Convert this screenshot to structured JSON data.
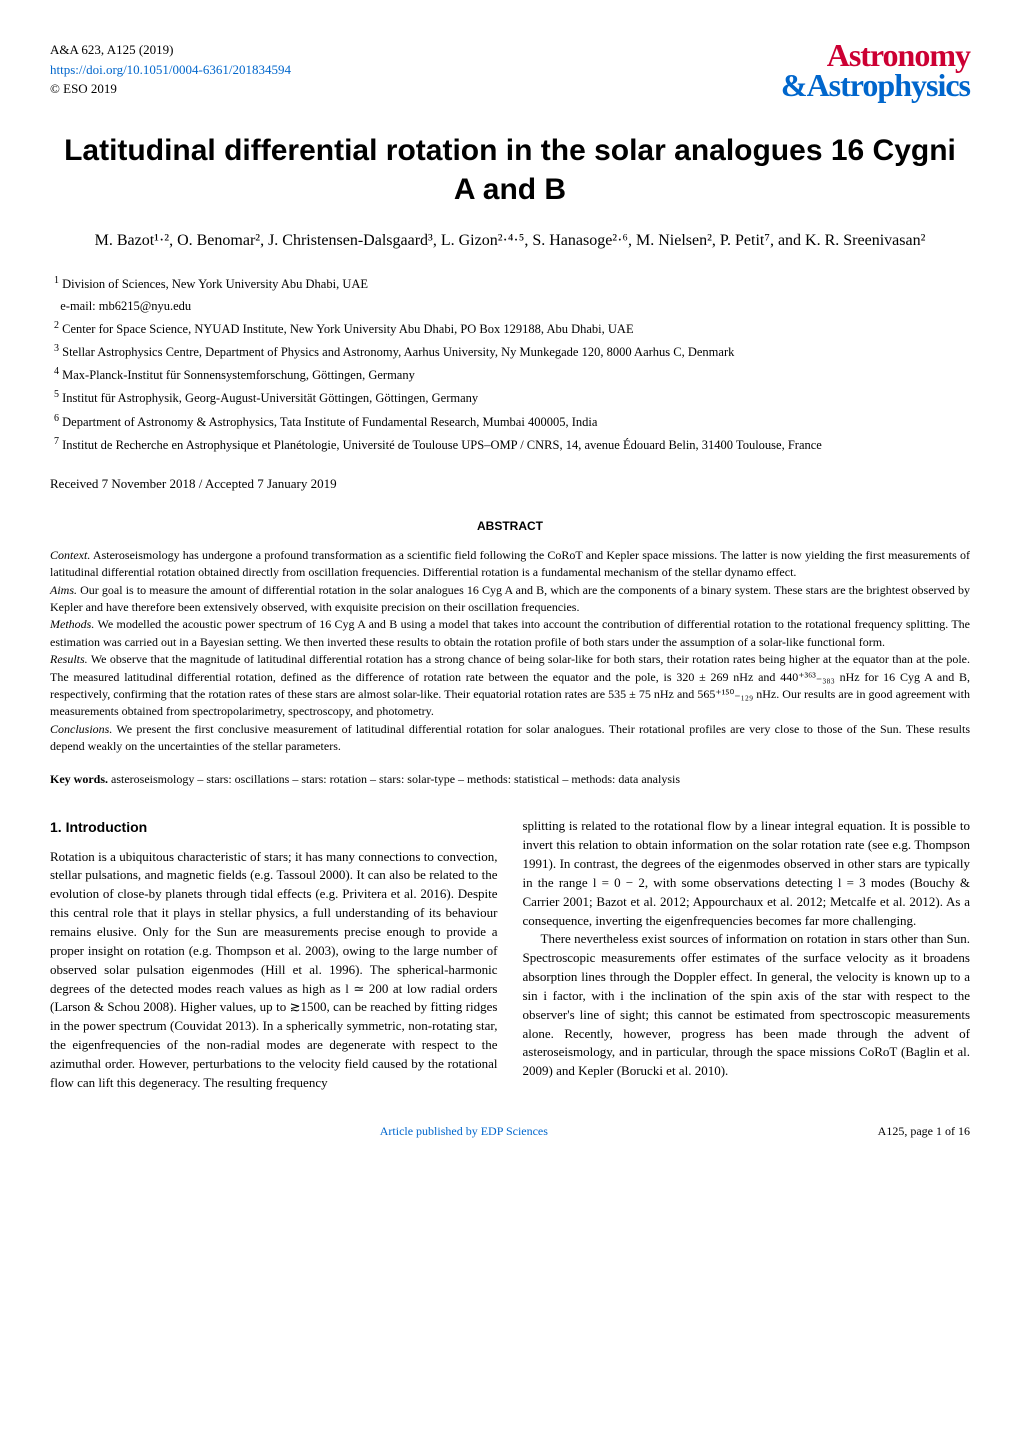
{
  "header": {
    "journal_ref": "A&A 623, A125 (2019)",
    "doi": "https://doi.org/10.1051/0004-6361/201834594",
    "copyright": "© ESO 2019",
    "logo_top": "Astronomy",
    "logo_amp": "&",
    "logo_bottom": "Astrophysics"
  },
  "title": "Latitudinal differential rotation in the solar analogues 16 Cygni A and B",
  "authors": "M. Bazot¹·², O. Benomar², J. Christensen-Dalsgaard³, L. Gizon²·⁴·⁵, S. Hanasoge²·⁶, M. Nielsen², P. Petit⁷, and K. R. Sreenivasan²",
  "affiliations": [
    "Division of Sciences, New York University Abu Dhabi, UAE",
    "e-mail: mb6215@nyu.edu",
    "Center for Space Science, NYUAD Institute, New York University Abu Dhabi, PO Box 129188, Abu Dhabi, UAE",
    "Stellar Astrophysics Centre, Department of Physics and Astronomy, Aarhus University, Ny Munkegade 120, 8000 Aarhus C, Denmark",
    "Max-Planck-Institut für Sonnensystemforschung, Göttingen, Germany",
    "Institut für Astrophysik, Georg-August-Universität Göttingen, Göttingen, Germany",
    "Department of Astronomy & Astrophysics, Tata Institute of Fundamental Research, Mumbai 400005, India",
    "Institut de Recherche en Astrophysique et Planétologie, Université de Toulouse UPS–OMP / CNRS, 14, avenue Édouard Belin, 31400 Toulouse, France"
  ],
  "aff_nums": [
    "1",
    "",
    "2",
    "3",
    "4",
    "5",
    "6",
    "7"
  ],
  "dates": "Received 7 November 2018 / Accepted 7 January 2019",
  "abstract_header": "ABSTRACT",
  "abstract": {
    "context_label": "Context.",
    "context": " Asteroseismology has undergone a profound transformation as a scientific field following the CoRoT and Kepler space missions. The latter is now yielding the first measurements of latitudinal differential rotation obtained directly from oscillation frequencies. Differential rotation is a fundamental mechanism of the stellar dynamo effect.",
    "aims_label": "Aims.",
    "aims": " Our goal is to measure the amount of differential rotation in the solar analogues 16 Cyg A and B, which are the components of a binary system. These stars are the brightest observed by Kepler and have therefore been extensively observed, with exquisite precision on their oscillation frequencies.",
    "methods_label": "Methods.",
    "methods": " We modelled the acoustic power spectrum of 16 Cyg A and B using a model that takes into account the contribution of differential rotation to the rotational frequency splitting. The estimation was carried out in a Bayesian setting. We then inverted these results to obtain the rotation profile of both stars under the assumption of a solar-like functional form.",
    "results_label": "Results.",
    "results": " We observe that the magnitude of latitudinal differential rotation has a strong chance of being solar-like for both stars, their rotation rates being higher at the equator than at the pole. The measured latitudinal differential rotation, defined as the difference of rotation rate between the equator and the pole, is 320 ± 269 nHz and 440⁺³⁶³₋₃₈₃ nHz for 16 Cyg A and B, respectively, confirming that the rotation rates of these stars are almost solar-like. Their equatorial rotation rates are 535 ± 75 nHz and 565⁺¹⁵⁰₋₁₂₉ nHz. Our results are in good agreement with measurements obtained from spectropolarimetry, spectroscopy, and photometry.",
    "conclusions_label": "Conclusions.",
    "conclusions": " We present the first conclusive measurement of latitudinal differential rotation for solar analogues. Their rotational profiles are very close to those of the Sun. These results depend weakly on the uncertainties of the stellar parameters."
  },
  "keywords_label": "Key words.",
  "keywords": " asteroseismology – stars: oscillations – stars: rotation – stars: solar-type – methods: statistical – methods: data analysis",
  "section1_header": "1. Introduction",
  "col1_p1": "Rotation is a ubiquitous characteristic of stars; it has many connections to convection, stellar pulsations, and magnetic fields (e.g. Tassoul 2000). It can also be related to the evolution of close-by planets through tidal effects (e.g. Privitera et al. 2016). Despite this central role that it plays in stellar physics, a full understanding of its behaviour remains elusive. Only for the Sun are measurements precise enough to provide a proper insight on rotation (e.g. Thompson et al. 2003), owing to the large number of observed solar pulsation eigenmodes (Hill et al. 1996). The spherical-harmonic degrees of the detected modes reach values as high as l ≃ 200 at low radial orders (Larson & Schou 2008). Higher values, up to ≳1500, can be reached by fitting ridges in the power spectrum (Couvidat 2013). In a spherically symmetric, non-rotating star, the eigenfrequencies of the non-radial modes are degenerate with respect to the azimuthal order. However, perturbations to the velocity field caused by the rotational flow can lift this degeneracy. The resulting frequency",
  "col2_p1": "splitting is related to the rotational flow by a linear integral equation. It is possible to invert this relation to obtain information on the solar rotation rate (see e.g. Thompson 1991). In contrast, the degrees of the eigenmodes observed in other stars are typically in the range l = 0 − 2, with some observations detecting l = 3 modes (Bouchy & Carrier 2001; Bazot et al. 2012; Appourchaux et al. 2012; Metcalfe et al. 2012). As a consequence, inverting the eigenfrequencies becomes far more challenging.",
  "col2_p2": "There nevertheless exist sources of information on rotation in stars other than Sun. Spectroscopic measurements offer estimates of the surface velocity as it broadens absorption lines through the Doppler effect. In general, the velocity is known up to a sin i factor, with i the inclination of the spin axis of the star with respect to the observer's line of sight; this cannot be estimated from spectroscopic measurements alone. Recently, however, progress has been made through the advent of asteroseismology, and in particular, through the space missions CoRoT (Baglin et al. 2009) and Kepler (Borucki et al. 2010).",
  "footer": {
    "center": "Article published by EDP Sciences",
    "right": "A125, page 1 of 16"
  },
  "colors": {
    "citation": "#cc0033",
    "link": "#0066cc",
    "logo_red": "#cc0033",
    "logo_blue": "#0066cc"
  }
}
